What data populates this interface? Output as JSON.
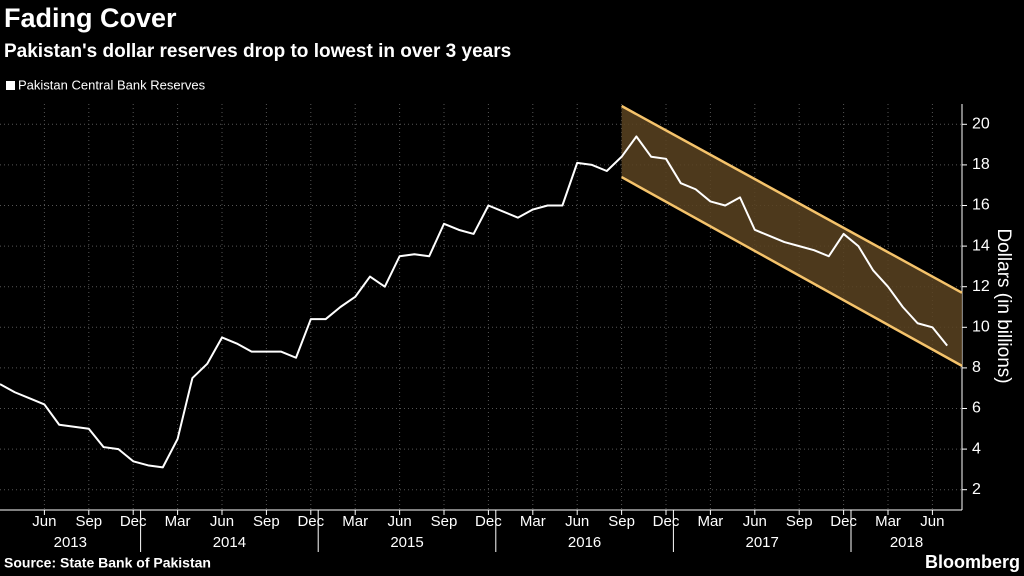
{
  "chart_data": {
    "type": "line",
    "title": "Fading Cover",
    "subtitle": "Pakistan's dollar reserves drop to lowest in over 3 years",
    "y_label": "Dollars (in billions)",
    "source": "Source: State Bank of Pakistan",
    "brand": "Bloomberg",
    "x": [
      "2013-03",
      "2013-04",
      "2013-05",
      "2013-06",
      "2013-07",
      "2013-08",
      "2013-09",
      "2013-10",
      "2013-11",
      "2013-12",
      "2014-01",
      "2014-02",
      "2014-03",
      "2014-04",
      "2014-05",
      "2014-06",
      "2014-07",
      "2014-08",
      "2014-09",
      "2014-10",
      "2014-11",
      "2014-12",
      "2015-01",
      "2015-02",
      "2015-03",
      "2015-04",
      "2015-05",
      "2015-06",
      "2015-07",
      "2015-08",
      "2015-09",
      "2015-10",
      "2015-11",
      "2015-12",
      "2016-01",
      "2016-02",
      "2016-03",
      "2016-04",
      "2016-05",
      "2016-06",
      "2016-07",
      "2016-08",
      "2016-09",
      "2016-10",
      "2016-11",
      "2016-12",
      "2017-01",
      "2017-02",
      "2017-03",
      "2017-04",
      "2017-05",
      "2017-06",
      "2017-07",
      "2017-08",
      "2017-09",
      "2017-10",
      "2017-11",
      "2017-12",
      "2018-01",
      "2018-02",
      "2018-03",
      "2018-04",
      "2018-05",
      "2018-06",
      "2018-07"
    ],
    "series": [
      {
        "name": "Pakistan Central Bank Reserves",
        "color": "#ffffff",
        "values": [
          7.2,
          6.8,
          6.5,
          6.2,
          5.2,
          5.1,
          5.0,
          4.1,
          4.0,
          3.4,
          3.2,
          3.1,
          4.5,
          7.5,
          8.2,
          9.5,
          9.2,
          8.8,
          8.8,
          8.8,
          8.5,
          10.4,
          10.4,
          11.0,
          11.5,
          12.5,
          12.0,
          13.5,
          13.6,
          13.5,
          15.1,
          14.8,
          14.6,
          16.0,
          15.7,
          15.4,
          15.8,
          16.0,
          16.0,
          18.1,
          18.0,
          17.7,
          18.4,
          19.4,
          18.4,
          18.3,
          17.1,
          16.8,
          16.2,
          16.0,
          16.4,
          14.8,
          14.5,
          14.2,
          14.0,
          13.8,
          13.5,
          14.6,
          14.0,
          12.8,
          12.0,
          11.0,
          10.2,
          10.0,
          9.1
        ]
      }
    ],
    "xlim": [
      "2013-03",
      "2018-08"
    ],
    "xticks": [
      {
        "value": "2013-06",
        "label": "Jun"
      },
      {
        "value": "2013-09",
        "label": "Sep"
      },
      {
        "value": "2013-12",
        "label": "Dec"
      },
      {
        "value": "2014-03",
        "label": "Mar"
      },
      {
        "value": "2014-06",
        "label": "Jun"
      },
      {
        "value": "2014-09",
        "label": "Sep"
      },
      {
        "value": "2014-12",
        "label": "Dec"
      },
      {
        "value": "2015-03",
        "label": "Mar"
      },
      {
        "value": "2015-06",
        "label": "Jun"
      },
      {
        "value": "2015-09",
        "label": "Sep"
      },
      {
        "value": "2015-12",
        "label": "Dec"
      },
      {
        "value": "2016-03",
        "label": "Mar"
      },
      {
        "value": "2016-06",
        "label": "Jun"
      },
      {
        "value": "2016-09",
        "label": "Sep"
      },
      {
        "value": "2016-12",
        "label": "Dec"
      },
      {
        "value": "2017-03",
        "label": "Mar"
      },
      {
        "value": "2017-06",
        "label": "Jun"
      },
      {
        "value": "2017-09",
        "label": "Sep"
      },
      {
        "value": "2017-12",
        "label": "Dec"
      },
      {
        "value": "2018-03",
        "label": "Mar"
      },
      {
        "value": "2018-06",
        "label": "Jun"
      }
    ],
    "years": [
      2013,
      2014,
      2015,
      2016,
      2017,
      2018
    ],
    "ylim": [
      1,
      21
    ],
    "yticks": [
      2,
      4,
      6,
      8,
      10,
      12,
      14,
      16,
      18,
      20
    ],
    "grid": true,
    "channel": {
      "x": [
        "2016-09",
        "2018-08"
      ],
      "upper": [
        20.9,
        11.7
      ],
      "lower": [
        17.4,
        8.1
      ],
      "color": "#f5c36b",
      "fill": "#5a4321"
    }
  }
}
